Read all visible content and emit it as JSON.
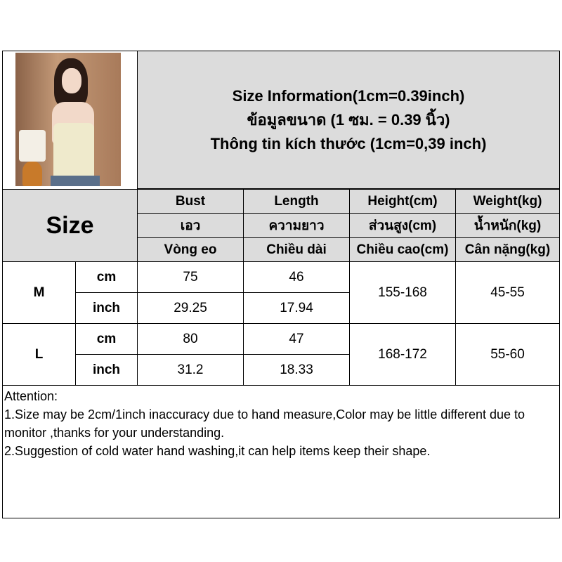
{
  "title": {
    "line1": "Size Information(1cm=0.39inch)",
    "line2": "ข้อมูลขนาด (1 ซม. = 0.39 นิ้ว)",
    "line3": "Thông tin kích thước (1cm=0,39 inch)"
  },
  "table": {
    "size_label": "Size",
    "columns": [
      {
        "en": "Bust",
        "th": "เอว",
        "vi": "Vòng eo"
      },
      {
        "en": "Length",
        "th": "ความยาว",
        "vi": "Chiều dài"
      },
      {
        "en": "Height(cm)",
        "th": "ส่วนสูง(cm)",
        "vi": "Chiều cao(cm)"
      },
      {
        "en": "Weight(kg)",
        "th": "น้ำหนัก(kg)",
        "vi": "Cân nặng(kg)"
      }
    ],
    "rows": [
      {
        "size": "M",
        "cm_label": "cm",
        "inch_label": "inch",
        "bust_cm": "75",
        "length_cm": "46",
        "bust_inch": "29.25",
        "length_inch": "17.94",
        "height": "155-168",
        "weight": "45-55"
      },
      {
        "size": "L",
        "cm_label": "cm",
        "inch_label": "inch",
        "bust_cm": "80",
        "length_cm": "47",
        "bust_inch": "31.2",
        "length_inch": "18.33",
        "height": "168-172",
        "weight": "55-60"
      }
    ]
  },
  "attention": {
    "heading": "Attention:",
    "note1": "1.Size may be 2cm/1inch inaccuracy due to hand measure,Color may be little different due to monitor ,thanks for your understanding.",
    "note2": "2.Suggestion of cold water hand washing,it can help items keep their shape."
  },
  "colors": {
    "header_bg": "#dcdcdc",
    "border": "#000000",
    "garment": "#efeacc"
  }
}
